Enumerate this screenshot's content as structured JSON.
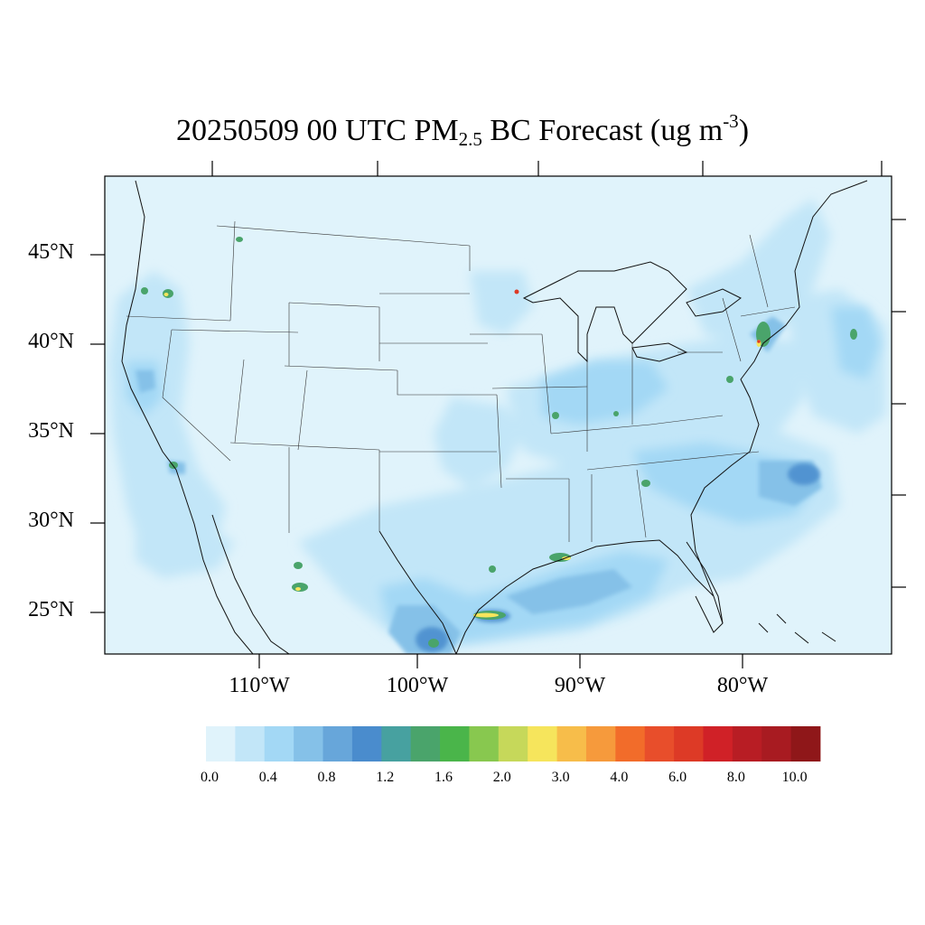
{
  "title": {
    "prefix": "20250509 00 UTC PM",
    "subscript": "2.5",
    "middle": " BC Forecast (ug m",
    "superscript": "-3",
    "suffix": ")"
  },
  "axes": {
    "lat_labels": [
      "45°N",
      "40°N",
      "35°N",
      "30°N",
      "25°N"
    ],
    "lon_labels": [
      "110°W",
      "100°W",
      "90°W",
      "80°W"
    ]
  },
  "colorbar": {
    "colors": [
      "#e0f3fb",
      "#c2e6f8",
      "#a3d8f5",
      "#85c1e8",
      "#67a6da",
      "#4a8ccd",
      "#47a1a0",
      "#4aa46b",
      "#4ab54a",
      "#88c84f",
      "#c6d85a",
      "#f6e55c",
      "#f7bd4a",
      "#f69a3c",
      "#f26c2a",
      "#e84e2b",
      "#dd3a26",
      "#d02127",
      "#b81d24",
      "#a81b21",
      "#8f1719"
    ],
    "labels": [
      "0.0",
      "0.4",
      "0.8",
      "1.2",
      "1.6",
      "2.0",
      "3.0",
      "4.0",
      "6.0",
      "8.0",
      "10.0"
    ]
  }
}
